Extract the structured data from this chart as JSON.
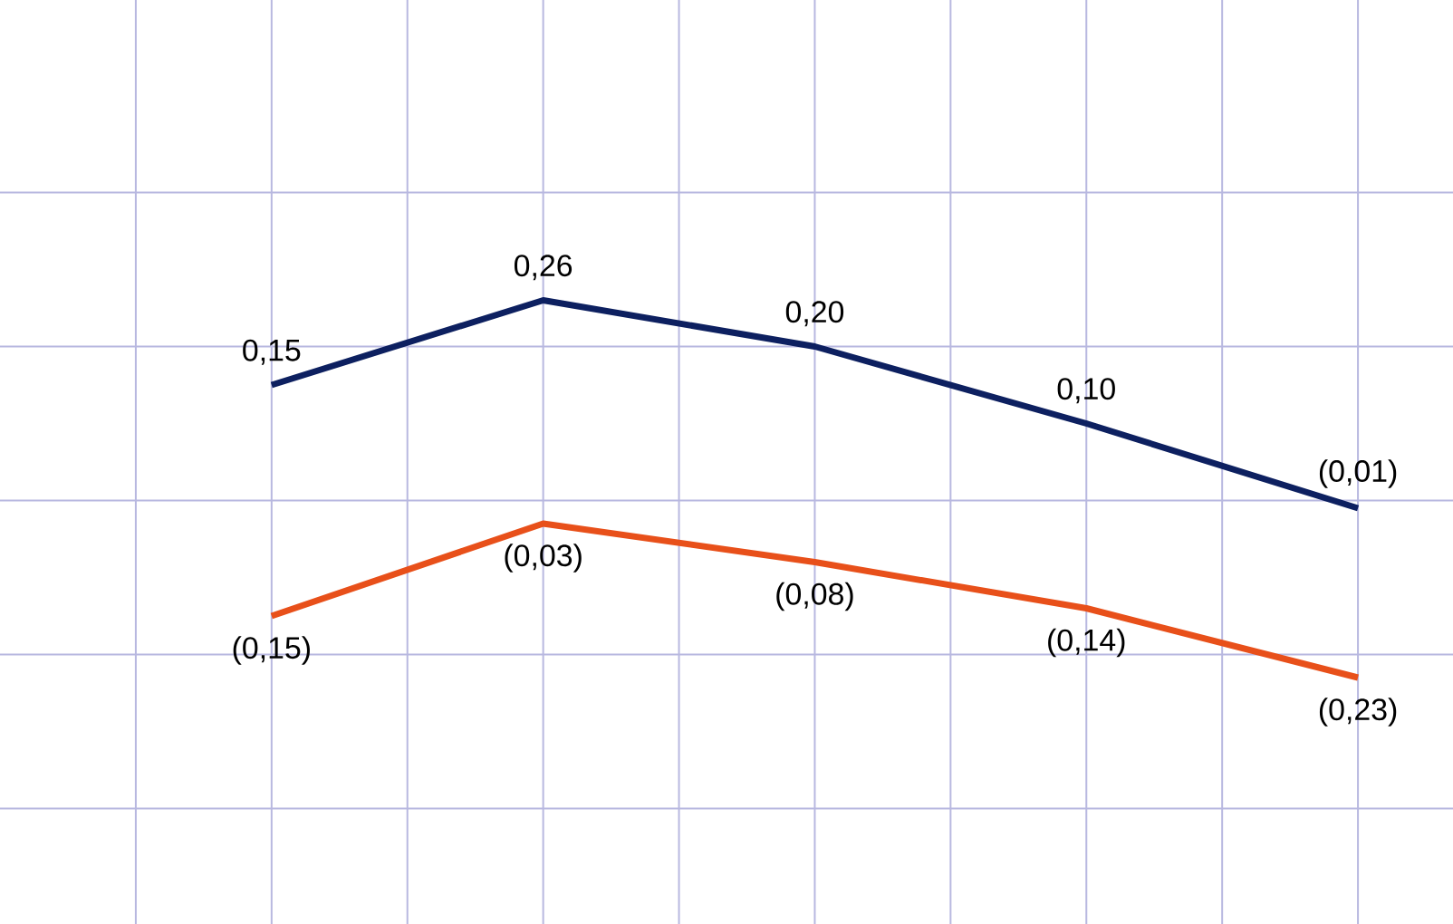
{
  "chart_data": {
    "type": "line",
    "categories": [
      null,
      null,
      null,
      null,
      null
    ],
    "series": [
      {
        "color": "#0d2060",
        "values": [
          0.15,
          0.26,
          0.2,
          0.1,
          -0.01
        ],
        "value_labels": [
          "0,15",
          "0,26",
          "0,20",
          "0,10",
          "(0,01)"
        ]
      },
      {
        "color": "#e8501a",
        "values": [
          -0.15,
          -0.03,
          -0.08,
          -0.14,
          -0.23
        ],
        "value_labels": [
          "(0,15)",
          "(0,03)",
          "(0,08)",
          "(0,14)",
          "(0,23)"
        ]
      }
    ],
    "ylim": [
      -0.55,
      0.65
    ],
    "yticks": [
      {
        "value": -0.4,
        "label": null
      },
      {
        "value": -0.2,
        "label": null
      },
      {
        "value": 0,
        "label": null
      },
      {
        "value": 0.2,
        "label": null
      },
      {
        "value": 0.4,
        "label": null
      }
    ],
    "grid": true,
    "marker": "none",
    "line_style": "solid"
  }
}
